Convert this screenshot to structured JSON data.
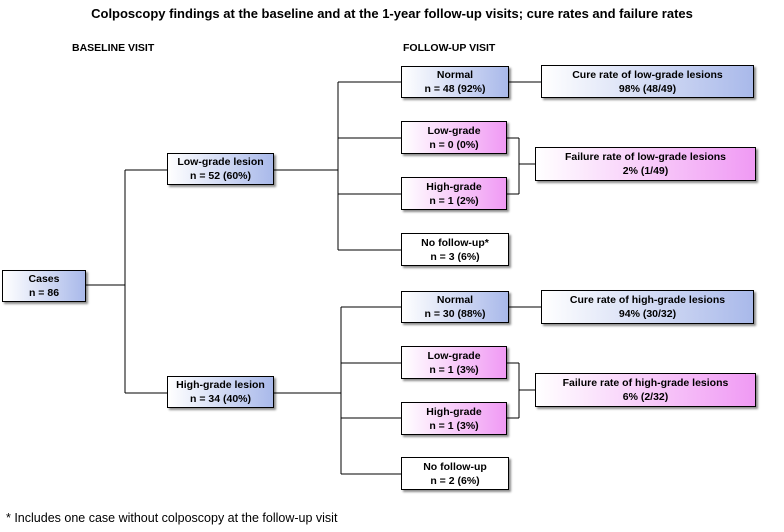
{
  "title": "Colposcopy findings at the baseline and at the 1-year follow-up visits; cure rates and failure rates",
  "labels": {
    "baseline": "BASELINE VISIT",
    "followup": "FOLLOW-UP VISIT"
  },
  "cases": {
    "title": "Cases",
    "n": "n = 86"
  },
  "baseline": {
    "low": {
      "title": "Low-grade lesion",
      "n": "n = 52 (60%)"
    },
    "high": {
      "title": "High-grade lesion",
      "n": "n = 34 (40%)"
    }
  },
  "followup_low": {
    "normal": {
      "title": "Normal",
      "n": "n = 48 (92%)"
    },
    "low": {
      "title": "Low-grade",
      "n": "n = 0 (0%)"
    },
    "high": {
      "title": "High-grade",
      "n": "n = 1 (2%)"
    },
    "none": {
      "title": "No follow-up*",
      "n": "n = 3  (6%)"
    }
  },
  "followup_high": {
    "normal": {
      "title": "Normal",
      "n": "n = 30 (88%)"
    },
    "low": {
      "title": "Low-grade",
      "n": "n = 1  (3%)"
    },
    "high": {
      "title": "High-grade",
      "n": "n = 1 (3%)"
    },
    "none": {
      "title": "No follow-up",
      "n": "n = 2 (6%)"
    }
  },
  "rates": {
    "cure_low": {
      "title": "Cure rate of low-grade lesions",
      "value": "98% (48/49)"
    },
    "fail_low": {
      "title": "Failure rate of low-grade lesions",
      "value": "2% (1/49)"
    },
    "cure_high": {
      "title": "Cure rate of high-grade lesions",
      "value": "94% (30/32)"
    },
    "fail_high": {
      "title": "Failure rate of high-grade lesions",
      "value": "6% (2/32)"
    }
  },
  "footnote": "* Includes one case without colposcopy at the follow-up visit",
  "colors": {
    "blue": "#a9b9ea",
    "pink": "#f09af4",
    "line": "#000000"
  }
}
